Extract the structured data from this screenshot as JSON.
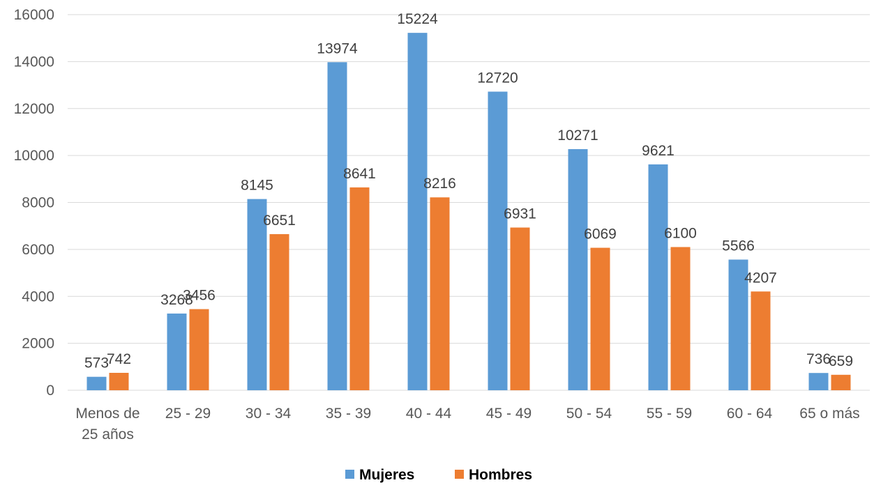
{
  "chart_data": {
    "type": "bar",
    "title": "",
    "xlabel": "",
    "ylabel": "",
    "categories": [
      [
        "Menos de",
        "25 años"
      ],
      [
        "25 - 29"
      ],
      [
        "30 - 34"
      ],
      [
        "35 - 39"
      ],
      [
        "40 - 44"
      ],
      [
        "45 - 49"
      ],
      [
        "50 - 54"
      ],
      [
        "55 - 59"
      ],
      [
        "60 - 64"
      ],
      [
        "65 o más"
      ]
    ],
    "series": [
      {
        "name": "Mujeres",
        "color": "#5B9BD5",
        "values": [
          573,
          3268,
          8145,
          13974,
          15224,
          12720,
          10271,
          9621,
          5566,
          736
        ]
      },
      {
        "name": "Hombres",
        "color": "#ED7D31",
        "values": [
          742,
          3456,
          6651,
          8641,
          8216,
          6931,
          6069,
          6100,
          4207,
          659
        ]
      }
    ],
    "ylim": [
      0,
      16000
    ],
    "yticks": [
      0,
      2000,
      4000,
      6000,
      8000,
      10000,
      12000,
      14000,
      16000
    ],
    "grid": true,
    "gridline_color": "#D9D9D9",
    "legend_position": "bottom"
  }
}
